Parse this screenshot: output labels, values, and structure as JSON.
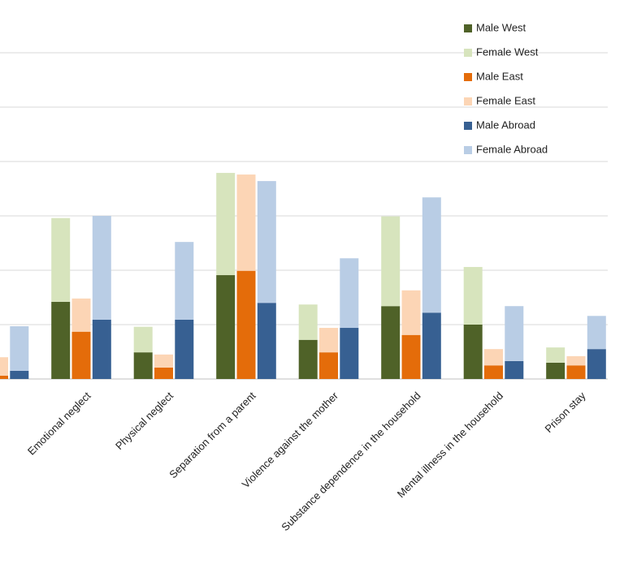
{
  "chart_data": {
    "type": "bar",
    "categories": [
      null,
      "Emotional neglect",
      "Physical neglect",
      "Separation from a parent",
      "Violence against the mother",
      "Substance dependence in the household",
      "Mental illness in the household",
      "Prison stay"
    ],
    "series": [
      {
        "name": "Male West",
        "color": "#4f6228",
        "values": [
          null,
          1.42,
          0.49,
          1.91,
          0.72,
          1.34,
          1.0,
          0.3
        ]
      },
      {
        "name": "Female West",
        "color": "#d7e4bd",
        "values": [
          null,
          1.54,
          0.47,
          1.88,
          0.65,
          1.65,
          1.06,
          0.28
        ]
      },
      {
        "name": "Male East",
        "color": "#e46c0a",
        "values": [
          0.06,
          0.87,
          0.21,
          1.99,
          0.49,
          0.81,
          0.25,
          0.25
        ]
      },
      {
        "name": "Female East",
        "color": "#fcd5b5",
        "values": [
          0.34,
          0.61,
          0.24,
          1.77,
          0.45,
          0.82,
          0.3,
          0.17
        ]
      },
      {
        "name": "Male Abroad",
        "color": "#376092",
        "values": [
          0.15,
          1.09,
          1.09,
          1.4,
          0.94,
          1.22,
          0.33,
          0.55
        ]
      },
      {
        "name": "Female Abroad",
        "color": "#b9cde5",
        "values": [
          0.82,
          1.91,
          1.43,
          2.24,
          1.28,
          2.12,
          1.01,
          0.61
        ]
      }
    ],
    "ylim": [
      0,
      7
    ],
    "yticks": [
      0,
      1,
      2,
      3,
      4,
      5,
      6
    ],
    "grid": true,
    "legend": "top-right"
  }
}
